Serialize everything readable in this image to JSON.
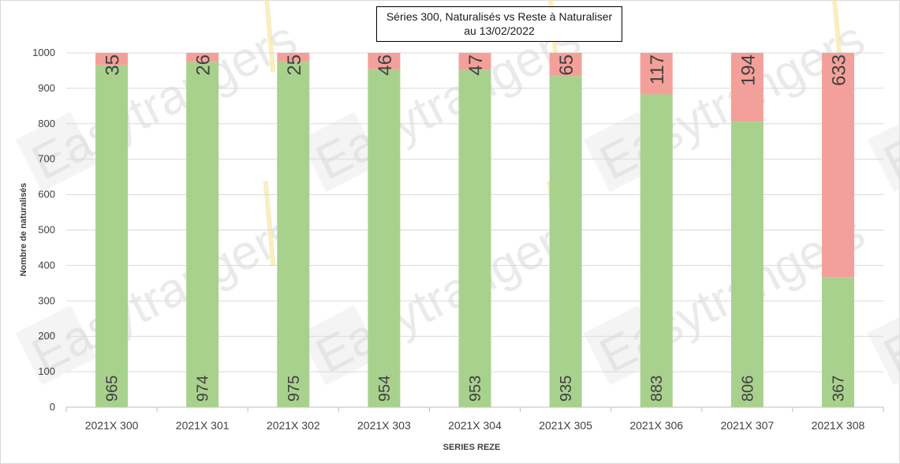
{
  "chart_data": {
    "type": "bar",
    "stacked": true,
    "title_lines": [
      "Séries 300, Naturalisés vs Reste à Naturaliser",
      "au 13/02/2022"
    ],
    "xlabel": "SERIES REZE",
    "ylabel": "Nombre de naturalisés",
    "ylim": [
      0,
      1000
    ],
    "yticks": [
      0,
      100,
      200,
      300,
      400,
      500,
      600,
      700,
      800,
      900,
      1000
    ],
    "grid": true,
    "categories": [
      "2021X 300",
      "2021X 301",
      "2021X 302",
      "2021X 303",
      "2021X 304",
      "2021X 305",
      "2021X 306",
      "2021X 307",
      "2021X 308"
    ],
    "series": [
      {
        "values": [
          965,
          974,
          975,
          954,
          953,
          935,
          883,
          806,
          367
        ],
        "color": "#a9d18e"
      },
      {
        "values": [
          35,
          26,
          25,
          46,
          47,
          65,
          117,
          194,
          633
        ],
        "color": "#f4a09a"
      }
    ]
  },
  "watermark": {
    "text": "Easytrangers"
  }
}
